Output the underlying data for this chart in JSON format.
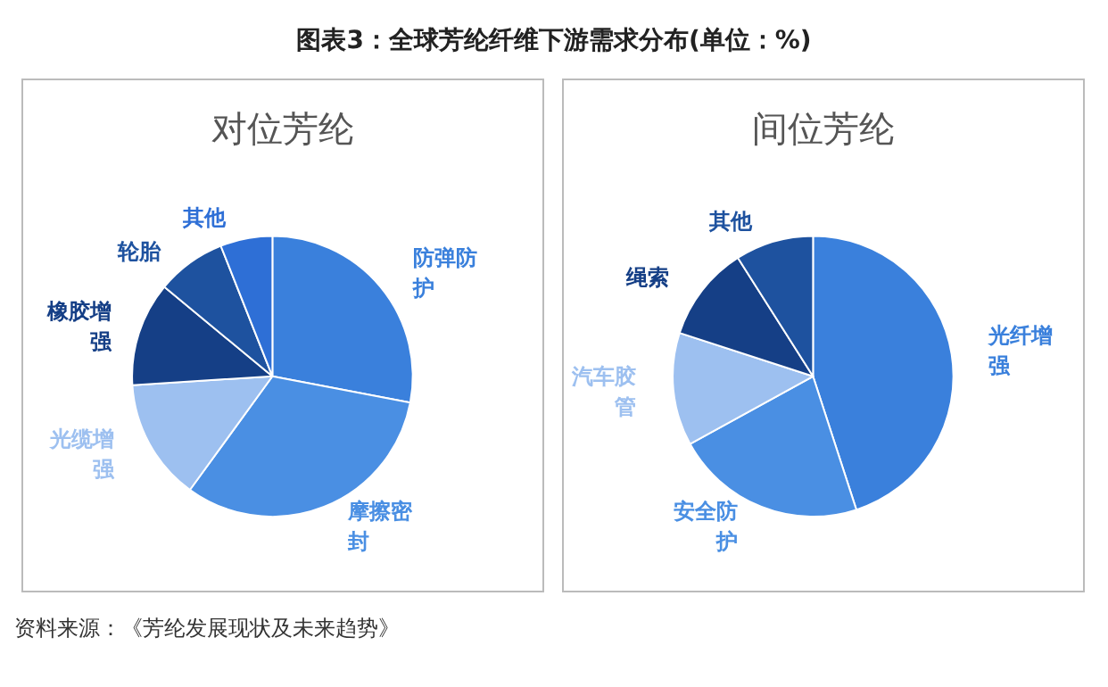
{
  "chart_data": [
    {
      "type": "pie",
      "title": "图表3：全球芳纶纤维下游需求分布(单位：%)",
      "subtitle": "对位芳纶",
      "annotations": [
        "资料来源：《芳纶发展现状及未来趋势》"
      ],
      "categories": [
        "防弹防护",
        "摩擦密封",
        "光缆增强",
        "橡胶增强",
        "轮胎",
        "其他"
      ],
      "values": [
        28,
        32,
        14,
        12,
        8,
        6
      ],
      "colors": [
        "#3a80dc",
        "#4a8fe3",
        "#9dc0f0",
        "#153f86",
        "#1e529f",
        "#2e6fd6"
      ]
    },
    {
      "type": "pie",
      "subtitle": "间位芳纶",
      "categories": [
        "光纤增强",
        "安全防护",
        "汽车胶管",
        "绳索",
        "其他"
      ],
      "values": [
        45,
        22,
        13,
        11,
        9
      ],
      "colors": [
        "#3a80dc",
        "#4a8fe3",
        "#9dc0f0",
        "#153f86",
        "#1e529f"
      ]
    }
  ]
}
